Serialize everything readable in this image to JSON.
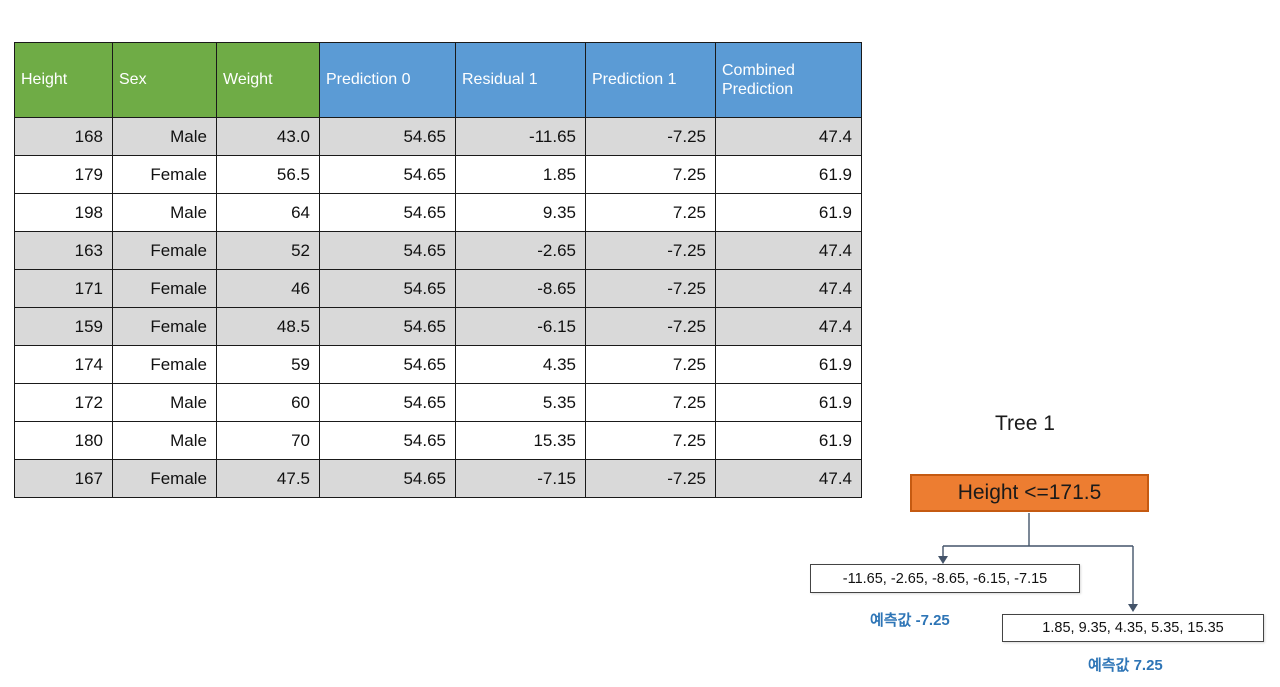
{
  "table": {
    "columns": [
      {
        "label": "Height",
        "color": "green"
      },
      {
        "label": "Sex",
        "color": "green"
      },
      {
        "label": "Weight",
        "color": "green"
      },
      {
        "label": "Prediction 0",
        "color": "blue"
      },
      {
        "label": "Residual 1",
        "color": "blue"
      },
      {
        "label": "Prediction 1",
        "color": "blue"
      },
      {
        "label": "Combined Prediction",
        "color": "blue"
      }
    ],
    "rows": [
      {
        "shaded": true,
        "cells": [
          "168",
          "Male",
          "43.0",
          "54.65",
          "-11.65",
          "-7.25",
          "47.4"
        ]
      },
      {
        "shaded": false,
        "cells": [
          "179",
          "Female",
          "56.5",
          "54.65",
          "1.85",
          "7.25",
          "61.9"
        ]
      },
      {
        "shaded": false,
        "cells": [
          "198",
          "Male",
          "64",
          "54.65",
          "9.35",
          "7.25",
          "61.9"
        ]
      },
      {
        "shaded": true,
        "cells": [
          "163",
          "Female",
          "52",
          "54.65",
          "-2.65",
          "-7.25",
          "47.4"
        ]
      },
      {
        "shaded": true,
        "cells": [
          "171",
          "Female",
          "46",
          "54.65",
          "-8.65",
          "-7.25",
          "47.4"
        ]
      },
      {
        "shaded": true,
        "cells": [
          "159",
          "Female",
          "48.5",
          "54.65",
          "-6.15",
          "-7.25",
          "47.4"
        ]
      },
      {
        "shaded": false,
        "cells": [
          "174",
          "Female",
          "59",
          "54.65",
          "4.35",
          "7.25",
          "61.9"
        ]
      },
      {
        "shaded": false,
        "cells": [
          "172",
          "Male",
          "60",
          "54.65",
          "5.35",
          "7.25",
          "61.9"
        ]
      },
      {
        "shaded": false,
        "cells": [
          "180",
          "Male",
          "70",
          "54.65",
          "15.35",
          "7.25",
          "61.9"
        ]
      },
      {
        "shaded": true,
        "cells": [
          "167",
          "Female",
          "47.5",
          "54.65",
          "-7.15",
          "-7.25",
          "47.4"
        ]
      }
    ]
  },
  "tree": {
    "title": "Tree 1",
    "root_label": "Height <=171.5",
    "left_leaf_values": "-11.65, -2.65, -8.65, -6.15, -7.15",
    "left_leaf_prediction": "예측값 -7.25",
    "right_leaf_values": "1.85, 9.35, 4.35, 5.35, 15.35",
    "right_leaf_prediction": "예측값 7.25"
  },
  "colors": {
    "header_green": "#6FAC46",
    "header_blue": "#5B9BD5",
    "row_shaded": "#D9D9D9",
    "root_fill": "#ED7D31",
    "root_border": "#C55A11",
    "prediction_text": "#2E75B6",
    "connector": "#44546A"
  }
}
